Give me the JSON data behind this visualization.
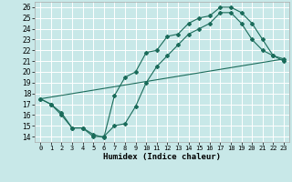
{
  "xlabel": "Humidex (Indice chaleur)",
  "background_color": "#c8e8e8",
  "line_color": "#1a6b5a",
  "xlim": [
    -0.5,
    23.5
  ],
  "ylim": [
    13.5,
    26.5
  ],
  "xticks": [
    0,
    1,
    2,
    3,
    4,
    5,
    6,
    7,
    8,
    9,
    10,
    11,
    12,
    13,
    14,
    15,
    16,
    17,
    18,
    19,
    20,
    21,
    22,
    23
  ],
  "yticks": [
    14,
    15,
    16,
    17,
    18,
    19,
    20,
    21,
    22,
    23,
    24,
    25,
    26
  ],
  "line1_x": [
    0,
    1,
    2,
    3,
    4,
    5,
    6,
    7,
    8,
    9,
    10,
    11,
    12,
    13,
    14,
    15,
    16,
    17,
    18,
    19,
    20,
    21,
    22,
    23
  ],
  "line1_y": [
    17.5,
    17.0,
    16.0,
    14.8,
    14.8,
    14.2,
    13.9,
    17.8,
    19.5,
    20.0,
    21.8,
    22.0,
    23.3,
    23.5,
    24.5,
    25.0,
    25.2,
    26.0,
    26.0,
    25.5,
    24.5,
    23.0,
    21.5,
    21.0
  ],
  "line2_x": [
    0,
    1,
    2,
    3,
    4,
    5,
    6,
    7,
    8,
    9,
    10,
    11,
    12,
    13,
    14,
    15,
    16,
    17,
    18,
    19,
    20,
    21,
    22,
    23
  ],
  "line2_y": [
    17.5,
    17.0,
    16.2,
    14.8,
    14.8,
    14.0,
    14.0,
    15.0,
    15.2,
    16.8,
    19.0,
    20.5,
    21.5,
    22.5,
    23.5,
    24.0,
    24.5,
    25.5,
    25.5,
    24.5,
    23.0,
    22.0,
    21.5,
    21.2
  ],
  "line3_x": [
    0,
    23
  ],
  "line3_y": [
    17.5,
    21.2
  ]
}
